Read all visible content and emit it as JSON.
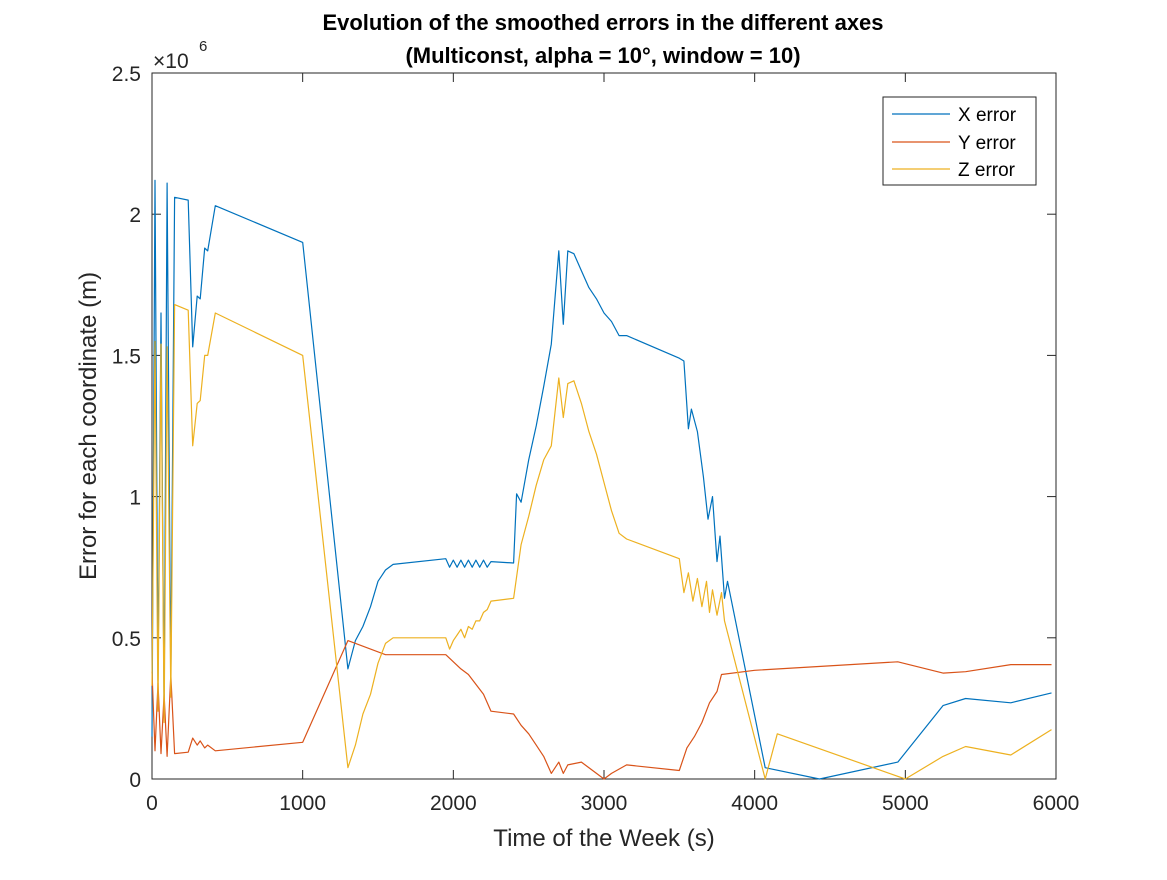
{
  "chart_data": {
    "type": "line",
    "title": [
      "Evolution of the smoothed errors in the different axes",
      "(Multiconst, alpha = 10°, window = 10)"
    ],
    "xlabel": "Time of the Week (s)",
    "ylabel": "Error for each coordinate (m)",
    "xlim": [
      0,
      6000
    ],
    "ylim": [
      0,
      2500000
    ],
    "xticks": [
      0,
      1000,
      2000,
      3000,
      4000,
      5000,
      6000
    ],
    "xtick_labels": [
      "0",
      "1000",
      "2000",
      "3000",
      "4000",
      "5000",
      "6000"
    ],
    "yticks": [
      0,
      500000,
      1000000,
      1500000,
      2000000,
      2500000
    ],
    "ytick_labels": [
      "0",
      "0.5",
      "1",
      "1.5",
      "2",
      "2.5"
    ],
    "y_exponent_label": "×10",
    "y_exponent_power": "6",
    "grid": false,
    "legend_position": "top-right",
    "series": [
      {
        "name": "X error",
        "color": "#0072BD",
        "points": [
          [
            0,
            150000
          ],
          [
            20,
            2120000
          ],
          [
            40,
            350000
          ],
          [
            60,
            1650000
          ],
          [
            80,
            250000
          ],
          [
            100,
            2110000
          ],
          [
            125,
            350000
          ],
          [
            150,
            2060000
          ],
          [
            240,
            2050000
          ],
          [
            270,
            1530000
          ],
          [
            300,
            1710000
          ],
          [
            320,
            1700000
          ],
          [
            350,
            1880000
          ],
          [
            370,
            1870000
          ],
          [
            420,
            2030000
          ],
          [
            1000,
            1900000
          ],
          [
            1300,
            390000
          ],
          [
            1350,
            490000
          ],
          [
            1400,
            540000
          ],
          [
            1450,
            610000
          ],
          [
            1500,
            700000
          ],
          [
            1550,
            740000
          ],
          [
            1600,
            760000
          ],
          [
            1950,
            780000
          ],
          [
            1975,
            750000
          ],
          [
            2000,
            775000
          ],
          [
            2025,
            750000
          ],
          [
            2050,
            775000
          ],
          [
            2075,
            750000
          ],
          [
            2100,
            775000
          ],
          [
            2125,
            750000
          ],
          [
            2150,
            775000
          ],
          [
            2175,
            750000
          ],
          [
            2200,
            775000
          ],
          [
            2225,
            750000
          ],
          [
            2250,
            770000
          ],
          [
            2400,
            765000
          ],
          [
            2420,
            1010000
          ],
          [
            2450,
            980000
          ],
          [
            2500,
            1130000
          ],
          [
            2550,
            1250000
          ],
          [
            2600,
            1390000
          ],
          [
            2650,
            1540000
          ],
          [
            2700,
            1870000
          ],
          [
            2730,
            1610000
          ],
          [
            2760,
            1870000
          ],
          [
            2800,
            1860000
          ],
          [
            2850,
            1800000
          ],
          [
            2900,
            1740000
          ],
          [
            2950,
            1700000
          ],
          [
            3000,
            1650000
          ],
          [
            3050,
            1620000
          ],
          [
            3100,
            1570000
          ],
          [
            3150,
            1570000
          ],
          [
            3500,
            1490000
          ],
          [
            3530,
            1480000
          ],
          [
            3560,
            1240000
          ],
          [
            3580,
            1310000
          ],
          [
            3620,
            1230000
          ],
          [
            3660,
            1070000
          ],
          [
            3690,
            920000
          ],
          [
            3720,
            1000000
          ],
          [
            3750,
            770000
          ],
          [
            3770,
            860000
          ],
          [
            3800,
            640000
          ],
          [
            3820,
            700000
          ],
          [
            4070,
            40000
          ],
          [
            4430,
            0
          ],
          [
            4950,
            60000
          ],
          [
            5250,
            260000
          ],
          [
            5400,
            285000
          ],
          [
            5700,
            270000
          ],
          [
            5970,
            305000
          ]
        ]
      },
      {
        "name": "Y error",
        "color": "#D95319",
        "points": [
          [
            0,
            380000
          ],
          [
            20,
            100000
          ],
          [
            40,
            340000
          ],
          [
            60,
            90000
          ],
          [
            80,
            300000
          ],
          [
            100,
            80000
          ],
          [
            125,
            370000
          ],
          [
            150,
            90000
          ],
          [
            240,
            95000
          ],
          [
            270,
            145000
          ],
          [
            300,
            120000
          ],
          [
            320,
            135000
          ],
          [
            350,
            110000
          ],
          [
            370,
            120000
          ],
          [
            420,
            100000
          ],
          [
            1000,
            130000
          ],
          [
            1300,
            490000
          ],
          [
            1550,
            440000
          ],
          [
            1950,
            440000
          ],
          [
            2050,
            390000
          ],
          [
            2100,
            370000
          ],
          [
            2200,
            300000
          ],
          [
            2250,
            240000
          ],
          [
            2400,
            230000
          ],
          [
            2450,
            190000
          ],
          [
            2500,
            160000
          ],
          [
            2550,
            120000
          ],
          [
            2600,
            80000
          ],
          [
            2650,
            20000
          ],
          [
            2700,
            60000
          ],
          [
            2730,
            20000
          ],
          [
            2760,
            50000
          ],
          [
            2850,
            60000
          ],
          [
            2950,
            20000
          ],
          [
            3000,
            0
          ],
          [
            3050,
            20000
          ],
          [
            3150,
            50000
          ],
          [
            3500,
            30000
          ],
          [
            3550,
            110000
          ],
          [
            3600,
            150000
          ],
          [
            3650,
            200000
          ],
          [
            3700,
            270000
          ],
          [
            3750,
            310000
          ],
          [
            3780,
            370000
          ],
          [
            4000,
            385000
          ],
          [
            4950,
            415000
          ],
          [
            5250,
            375000
          ],
          [
            5400,
            380000
          ],
          [
            5700,
            405000
          ],
          [
            5970,
            405000
          ]
        ]
      },
      {
        "name": "Z error",
        "color": "#EDB120",
        "points": [
          [
            0,
            330000
          ],
          [
            20,
            1550000
          ],
          [
            40,
            240000
          ],
          [
            60,
            1540000
          ],
          [
            80,
            200000
          ],
          [
            100,
            1530000
          ],
          [
            125,
            290000
          ],
          [
            150,
            1680000
          ],
          [
            240,
            1660000
          ],
          [
            270,
            1180000
          ],
          [
            300,
            1330000
          ],
          [
            320,
            1340000
          ],
          [
            350,
            1500000
          ],
          [
            370,
            1500000
          ],
          [
            420,
            1650000
          ],
          [
            1000,
            1500000
          ],
          [
            1300,
            40000
          ],
          [
            1350,
            120000
          ],
          [
            1400,
            230000
          ],
          [
            1450,
            300000
          ],
          [
            1500,
            410000
          ],
          [
            1550,
            480000
          ],
          [
            1600,
            500000
          ],
          [
            1950,
            500000
          ],
          [
            1975,
            460000
          ],
          [
            2000,
            490000
          ],
          [
            2025,
            510000
          ],
          [
            2050,
            530000
          ],
          [
            2075,
            500000
          ],
          [
            2100,
            540000
          ],
          [
            2125,
            530000
          ],
          [
            2150,
            560000
          ],
          [
            2175,
            560000
          ],
          [
            2200,
            590000
          ],
          [
            2225,
            600000
          ],
          [
            2250,
            630000
          ],
          [
            2400,
            640000
          ],
          [
            2450,
            830000
          ],
          [
            2500,
            930000
          ],
          [
            2550,
            1040000
          ],
          [
            2600,
            1130000
          ],
          [
            2650,
            1180000
          ],
          [
            2700,
            1420000
          ],
          [
            2730,
            1280000
          ],
          [
            2760,
            1400000
          ],
          [
            2800,
            1410000
          ],
          [
            2850,
            1330000
          ],
          [
            2900,
            1230000
          ],
          [
            2950,
            1150000
          ],
          [
            3000,
            1050000
          ],
          [
            3050,
            950000
          ],
          [
            3100,
            870000
          ],
          [
            3150,
            850000
          ],
          [
            3500,
            780000
          ],
          [
            3530,
            660000
          ],
          [
            3560,
            730000
          ],
          [
            3590,
            630000
          ],
          [
            3620,
            710000
          ],
          [
            3650,
            610000
          ],
          [
            3680,
            700000
          ],
          [
            3700,
            590000
          ],
          [
            3720,
            670000
          ],
          [
            3750,
            580000
          ],
          [
            3780,
            660000
          ],
          [
            3800,
            560000
          ],
          [
            4070,
            0
          ],
          [
            4150,
            160000
          ],
          [
            5000,
            0
          ],
          [
            5250,
            80000
          ],
          [
            5400,
            115000
          ],
          [
            5700,
            85000
          ],
          [
            5970,
            175000
          ]
        ]
      }
    ]
  }
}
